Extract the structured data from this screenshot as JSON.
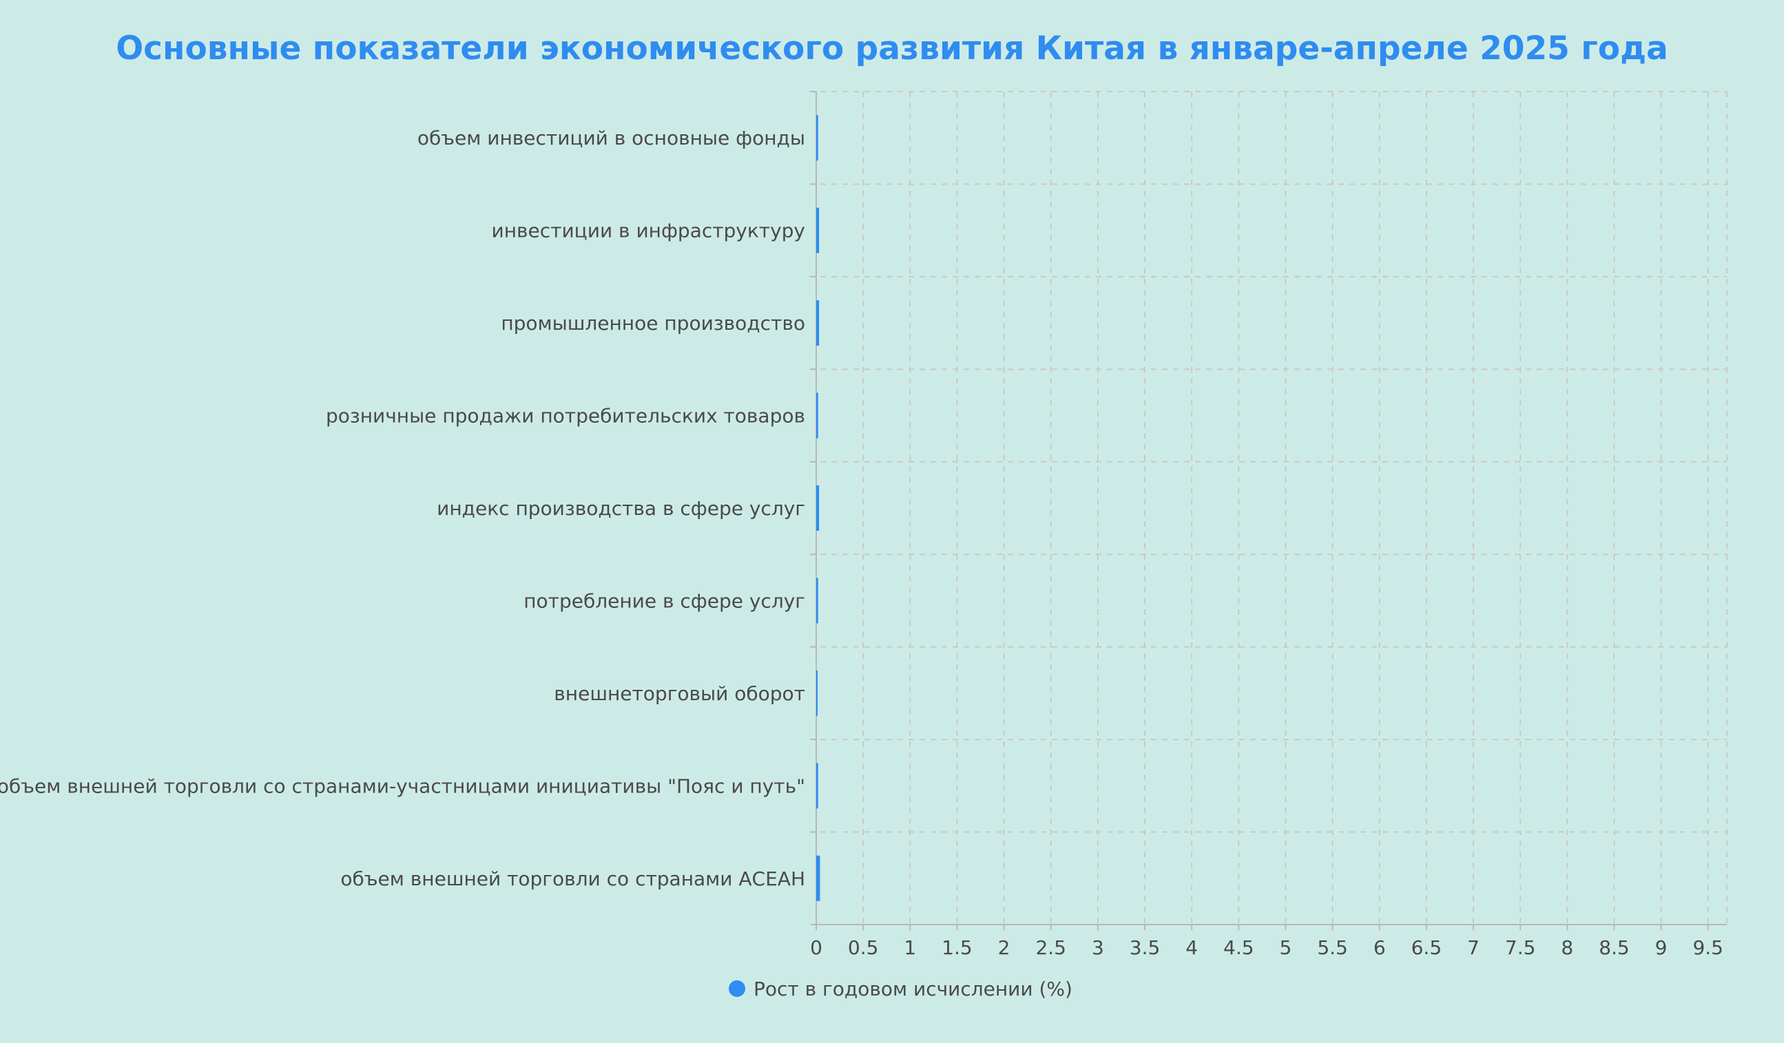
{
  "chart_data": {
    "type": "bar",
    "orientation": "horizontal",
    "title": "Основные показатели экономического развития Китая в январе-апреле 2025 года",
    "categories": [
      "объем инвестиций в основные фонды",
      "инвестиции в инфраструктуру",
      "промышленное производство",
      "розничные продажи потребительских товаров",
      "индекс производства в сфере услуг",
      "потребление в сфере услуг",
      "внешнеторговый оборот",
      "объем внешней торговли со странами-участницами инициативы \"Пояс и путь\"",
      "объем внешней торговли со странами АСЕАН"
    ],
    "series": [
      {
        "name": "Рост в годовом исчислении (%)",
        "values": [
          0.02,
          0.03,
          0.03,
          0.02,
          0.03,
          0.02,
          0.01,
          0.02,
          0.04
        ],
        "color": "#2f8cf0"
      }
    ],
    "xlim": [
      0,
      9.7
    ],
    "xticks": [
      0,
      0.5,
      1,
      1.5,
      2,
      2.5,
      3,
      3.5,
      4,
      4.5,
      5,
      5.5,
      6,
      6.5,
      7,
      7.5,
      8,
      8.5,
      9,
      9.5
    ],
    "grid": true,
    "legend_position": "bottom",
    "colors": {
      "title": "#2f8cf0",
      "text": "#4a4a4a",
      "grid": "#c8c8c8",
      "axis": "#b8b8b8",
      "background": "#cdebe6"
    }
  }
}
